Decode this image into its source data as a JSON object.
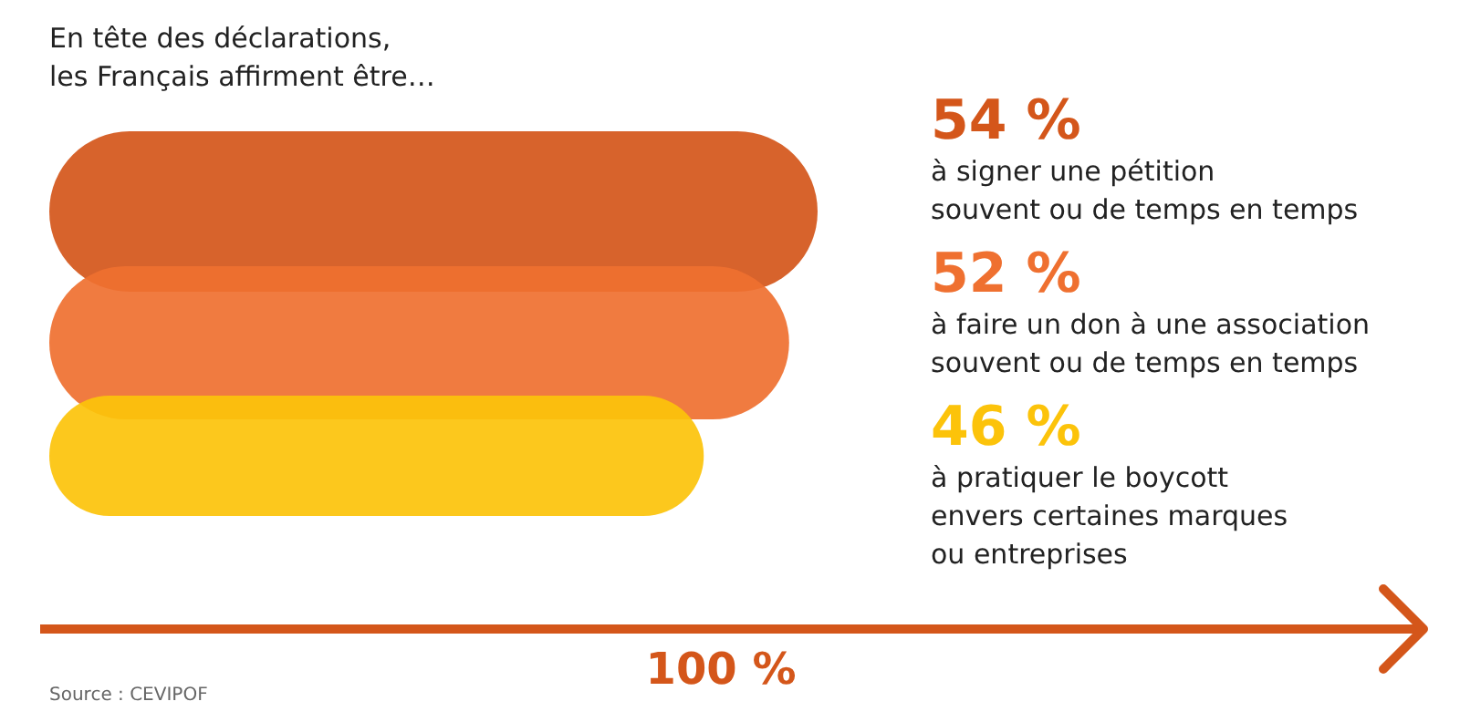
{
  "chart_data": {
    "type": "bar",
    "orientation": "horizontal",
    "title": "En tête des déclarations,\nles Français affirment être…",
    "categories": [
      "à signer une pétition\nsouvent ou de temps en temps",
      "à faire un don à une association\nsouvent ou de temps en temps",
      "à pratiquer le boycott\nenvers certaines marques\nou entreprises"
    ],
    "values": [
      54,
      52,
      46
    ],
    "colors": [
      "#d4561a",
      "#ef7030",
      "#fcc30a"
    ],
    "value_labels": [
      "54 %",
      "52 %",
      "46 %"
    ],
    "xlabel": "100 %",
    "annotations": [
      "Source : CEVIPOF"
    ]
  }
}
